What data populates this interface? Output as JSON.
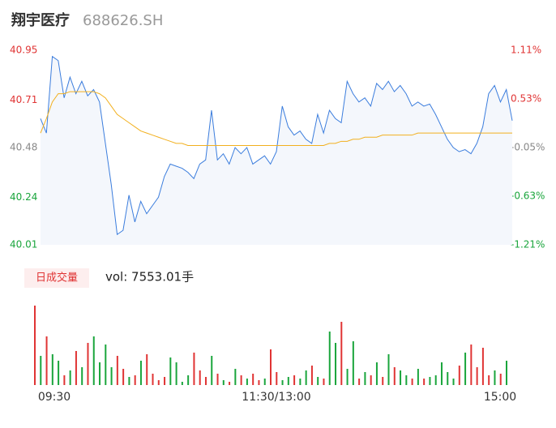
{
  "header": {
    "name": "翔宇医疗",
    "code": "688626.SH"
  },
  "chart_data": [
    {
      "type": "line",
      "ylim": [
        40.01,
        40.95
      ],
      "yticks": [
        40.01,
        40.24,
        40.48,
        40.71,
        40.95
      ],
      "y2lim": [
        -1.21,
        1.11
      ],
      "y2ticks": [
        {
          "value": -1.21,
          "label": "-1.21%"
        },
        {
          "value": -0.63,
          "label": "-0.63%"
        },
        {
          "value": -0.05,
          "label": "-0.05%"
        },
        {
          "value": 0.53,
          "label": "0.53%"
        },
        {
          "value": 1.11,
          "label": "1.11%"
        }
      ],
      "xlim": [
        0,
        80
      ],
      "series": [
        {
          "name": "price",
          "color": "#3b7ddd",
          "values": [
            40.62,
            40.55,
            40.92,
            40.9,
            40.72,
            40.82,
            40.74,
            40.8,
            40.73,
            40.76,
            40.7,
            40.5,
            40.3,
            40.06,
            40.08,
            40.25,
            40.12,
            40.22,
            40.16,
            40.2,
            40.24,
            40.34,
            40.4,
            40.39,
            40.38,
            40.36,
            40.33,
            40.4,
            40.42,
            40.66,
            40.42,
            40.45,
            40.4,
            40.48,
            40.45,
            40.48,
            40.4,
            40.42,
            40.44,
            40.4,
            40.46,
            40.68,
            40.58,
            40.54,
            40.56,
            40.52,
            40.5,
            40.64,
            40.55,
            40.66,
            40.62,
            40.6,
            40.8,
            40.74,
            40.7,
            40.72,
            40.68,
            40.79,
            40.76,
            40.8,
            40.75,
            40.78,
            40.74,
            40.68,
            40.7,
            40.68,
            40.69,
            40.64,
            40.58,
            40.52,
            40.48,
            40.46,
            40.47,
            40.45,
            40.5,
            40.58,
            40.74,
            40.78,
            40.7,
            40.76,
            40.61
          ]
        },
        {
          "name": "average",
          "color": "#f2b01e",
          "values": [
            40.55,
            40.62,
            40.7,
            40.74,
            40.74,
            40.75,
            40.75,
            40.75,
            40.75,
            40.75,
            40.74,
            40.72,
            40.68,
            40.64,
            40.62,
            40.6,
            40.58,
            40.56,
            40.55,
            40.54,
            40.53,
            40.52,
            40.51,
            40.5,
            40.5,
            40.49,
            40.49,
            40.49,
            40.49,
            40.49,
            40.49,
            40.49,
            40.49,
            40.49,
            40.49,
            40.49,
            40.49,
            40.49,
            40.49,
            40.49,
            40.49,
            40.49,
            40.49,
            40.49,
            40.49,
            40.49,
            40.49,
            40.49,
            40.49,
            40.5,
            40.5,
            40.51,
            40.51,
            40.52,
            40.52,
            40.53,
            40.53,
            40.53,
            40.54,
            40.54,
            40.54,
            40.54,
            40.54,
            40.54,
            40.55,
            40.55,
            40.55,
            40.55,
            40.55,
            40.55,
            40.55,
            40.55,
            40.55,
            40.55,
            40.55,
            40.55,
            40.55,
            40.55,
            40.55,
            40.55,
            40.55
          ]
        }
      ]
    },
    {
      "type": "bar",
      "legend": "日成交量",
      "label": "vol: 7553.01手",
      "ylim": [
        0,
        100
      ],
      "xticks": [
        {
          "value": 0,
          "label": "09:30"
        },
        {
          "value": 40,
          "label": "11:30/13:00"
        },
        {
          "value": 80,
          "label": "15:00"
        }
      ],
      "values": [
        98,
        36,
        60,
        38,
        30,
        12,
        18,
        42,
        22,
        52,
        60,
        28,
        50,
        22,
        36,
        20,
        10,
        12,
        30,
        38,
        14,
        6,
        10,
        34,
        28,
        4,
        12,
        40,
        18,
        10,
        36,
        14,
        6,
        4,
        20,
        12,
        8,
        14,
        6,
        8,
        44,
        16,
        6,
        10,
        12,
        8,
        18,
        24,
        10,
        8,
        66,
        52,
        78,
        20,
        54,
        8,
        16,
        12,
        28,
        10,
        38,
        22,
        18,
        12,
        8,
        20,
        8,
        10,
        12,
        28,
        16,
        8,
        24,
        40,
        50,
        22,
        46,
        12,
        18,
        14,
        30
      ],
      "colors": {
        "up": "#e03434",
        "down": "#1aa53c"
      }
    }
  ]
}
